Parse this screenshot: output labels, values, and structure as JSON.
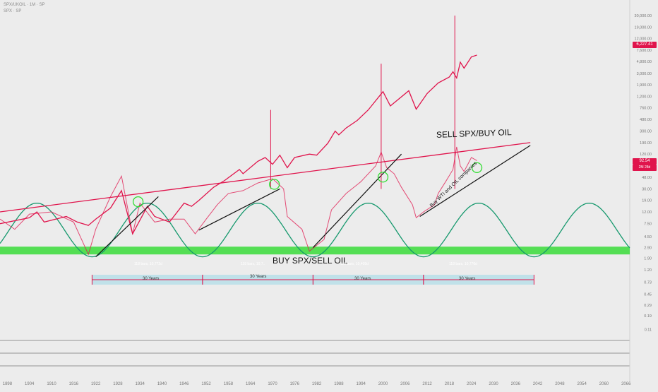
{
  "header": {
    "symbol_line": "SPX/UKOIL · 1M · SP",
    "sub_line": "SPX · SP"
  },
  "badges": {
    "spx_price": "6,227.41",
    "ratio_price": "92.54",
    "ratio_countdown": "2M 28d",
    "colors": {
      "spx": "#e0144c",
      "ratio": "#e0144c"
    }
  },
  "annotations": {
    "sell_label": "SELL SPX/BUY OIL",
    "buy_label": "BUY SPX/SELL OIL",
    "diag_label": "Buy WTI and OIL companies",
    "bar_counts": [
      "118 bars, 10,772d",
      "118 bars, 10,7..",
      "118 bars, 10,409d",
      "118 bars, 10,776d"
    ],
    "spans": [
      "30 Years",
      "30 Years",
      "30 Years",
      "30 Years"
    ]
  },
  "chart_data": {
    "type": "line",
    "scale": "log",
    "x_axis": {
      "ticks": [
        "1898",
        "1904",
        "1910",
        "1916",
        "1922",
        "1928",
        "1934",
        "1940",
        "1946",
        "1952",
        "1958",
        "1964",
        "1970",
        "1976",
        "1982",
        "1988",
        "1994",
        "2000",
        "2006",
        "2012",
        "2018",
        "2024",
        "2030",
        "2036",
        "2042",
        "2048",
        "2054",
        "2060",
        "2066"
      ],
      "range": [
        1896,
        2067
      ]
    },
    "y_axis": {
      "ticks": [
        0.11,
        0.19,
        0.29,
        0.45,
        0.73,
        1.2,
        1.9,
        2.9,
        4.5,
        7.5,
        12.0,
        19.0,
        30.0,
        48.0,
        75.0,
        120.0,
        190.0,
        300.0,
        480.0,
        760.0,
        1200.0,
        1900.0,
        3000.0,
        4800.0,
        7600.0,
        12000.0,
        19000.0,
        30000.0
      ],
      "tick_labels": [
        "0.11",
        "0.19",
        "0.29",
        "0.45",
        "0.73",
        "1.20",
        "1.90",
        "2.90",
        "4.50",
        "7.50",
        "12.00",
        "19.00",
        "30.00",
        "48.00",
        "75.00",
        "120.00",
        "190.00",
        "300.00",
        "480.00",
        "760.00",
        "1,200.00",
        "1,900.00",
        "3,000.00",
        "4,800.00",
        "7,600.00",
        "12,000.00",
        "19,000.00",
        "30,000.00"
      ]
    },
    "series": [
      {
        "name": "SPX",
        "color": "#e0144c",
        "values": [
          [
            1896,
            7.5
          ],
          [
            1904,
            9.5
          ],
          [
            1906,
            12
          ],
          [
            1908,
            8
          ],
          [
            1914,
            10
          ],
          [
            1917,
            8
          ],
          [
            1920,
            7
          ],
          [
            1922,
            9
          ],
          [
            1926,
            14
          ],
          [
            1929,
            28
          ],
          [
            1932,
            5
          ],
          [
            1936,
            15
          ],
          [
            1938,
            10
          ],
          [
            1942,
            8
          ],
          [
            1946,
            17
          ],
          [
            1948,
            15
          ],
          [
            1950,
            19
          ],
          [
            1954,
            32
          ],
          [
            1957,
            42
          ],
          [
            1961,
            65
          ],
          [
            1962,
            55
          ],
          [
            1966,
            90
          ],
          [
            1968,
            105
          ],
          [
            1970,
            80
          ],
          [
            1972,
            115
          ],
          [
            1974,
            70
          ],
          [
            1976,
            105
          ],
          [
            1980,
            120
          ],
          [
            1982,
            115
          ],
          [
            1985,
            185
          ],
          [
            1987,
            300
          ],
          [
            1988,
            260
          ],
          [
            1990,
            340
          ],
          [
            1993,
            460
          ],
          [
            1996,
            700
          ],
          [
            2000,
            1450
          ],
          [
            2002,
            820
          ],
          [
            2007,
            1500
          ],
          [
            2009,
            720
          ],
          [
            2012,
            1350
          ],
          [
            2015,
            2050
          ],
          [
            2018,
            2600
          ],
          [
            2019,
            3200
          ],
          [
            2020,
            2500
          ],
          [
            2021,
            4700
          ],
          [
            2022,
            3700
          ],
          [
            2024,
            5800
          ],
          [
            2025.5,
            6227.41
          ]
        ]
      },
      {
        "name": "SPX/UKOIL",
        "color": "#e0144c",
        "values": [
          [
            1896,
            9
          ],
          [
            1900,
            6
          ],
          [
            1904,
            11
          ],
          [
            1910,
            12
          ],
          [
            1916,
            8
          ],
          [
            1920,
            2.2
          ],
          [
            1922,
            6
          ],
          [
            1926,
            22
          ],
          [
            1929,
            50
          ],
          [
            1932,
            5
          ],
          [
            1934,
            17
          ],
          [
            1938,
            8
          ],
          [
            1942,
            9
          ],
          [
            1946,
            9
          ],
          [
            1949,
            5
          ],
          [
            1952,
            9
          ],
          [
            1955,
            16
          ],
          [
            1958,
            25
          ],
          [
            1962,
            28
          ],
          [
            1966,
            38
          ],
          [
            1970,
            45
          ],
          [
            1973,
            30
          ],
          [
            1974,
            10
          ],
          [
            1978,
            6
          ],
          [
            1980,
            2.5
          ],
          [
            1984,
            4
          ],
          [
            1986,
            13
          ],
          [
            1990,
            25
          ],
          [
            1994,
            40
          ],
          [
            1998,
            75
          ],
          [
            1999.5,
            130
          ],
          [
            2001,
            70
          ],
          [
            2003,
            55
          ],
          [
            2005,
            32
          ],
          [
            2008,
            16
          ],
          [
            2009,
            9.5
          ],
          [
            2011,
            12
          ],
          [
            2014,
            16
          ],
          [
            2015,
            25
          ],
          [
            2017,
            40
          ],
          [
            2019,
            65
          ],
          [
            2020,
            160
          ],
          [
            2021,
            75
          ],
          [
            2022,
            60
          ],
          [
            2024,
            105
          ],
          [
            2025.5,
            92.54
          ]
        ]
      }
    ],
    "sine_cycle": {
      "color": "#17996e",
      "period_years": 30,
      "trough_years": [
        1921,
        1951,
        1981,
        2011,
        2041,
        2071
      ],
      "low": 2.0,
      "high": 17
    },
    "buy_band": {
      "color": "#44dd44",
      "range": [
        2.2,
        3.0
      ]
    },
    "sell_trendline": {
      "color": "#e0144c",
      "points": [
        [
          1896,
          12
        ],
        [
          2040,
          190
        ]
      ]
    },
    "support_lines": [
      [
        [
          1922,
          2.0
        ],
        [
          1939,
          22
        ]
      ],
      [
        [
          1950,
          5.8
        ],
        [
          1972,
          30
        ]
      ],
      [
        [
          1981,
          2.9
        ],
        [
          2005,
          120
        ]
      ],
      [
        [
          2010,
          10
        ],
        [
          2040,
          170
        ]
      ]
    ],
    "spike_lines": [
      [
        1969.5,
        700
      ],
      [
        1999.5,
        4400
      ],
      [
        2019.5,
        30000
      ]
    ],
    "circles": [
      [
        1933.5,
        18
      ],
      [
        1970.5,
        36
      ],
      [
        2000,
        48
      ],
      [
        2025.5,
        70
      ]
    ],
    "hlines": [
      0.08,
      0.045,
      0.025
    ]
  }
}
